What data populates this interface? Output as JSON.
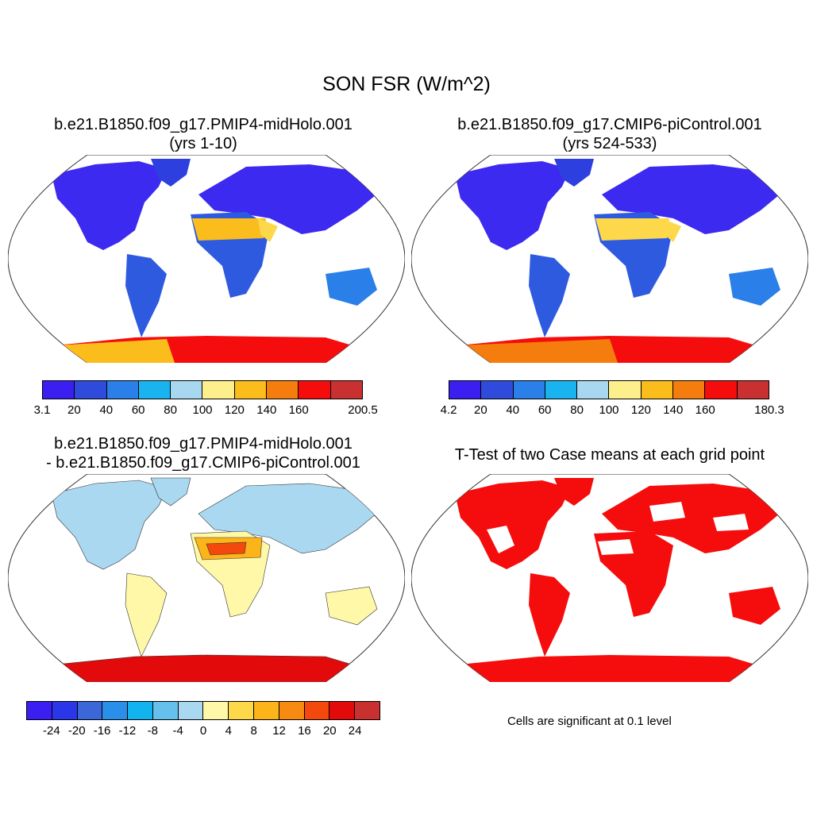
{
  "title": "SON FSR (W/m^2)",
  "panels": {
    "p1": {
      "title1": "b.e21.B1850.f09_g17.PMIP4-midHolo.001",
      "title2": "(yrs 1-10)"
    },
    "p2": {
      "title1": "b.e21.B1850.f09_g17.CMIP6-piControl.001",
      "title2": "(yrs 524-533)"
    },
    "p3": {
      "title1": "b.e21.B1850.f09_g17.PMIP4-midHolo.001",
      "title2": "- b.e21.B1850.f09_g17.CMIP6-piControl.001"
    },
    "p4": {
      "title1": "T-Test of two Case means at each grid point",
      "note": "Cells are significant at 0.1 level"
    }
  },
  "colorbars": {
    "cb1": {
      "colors": [
        "#3a1ff0",
        "#2e4bdc",
        "#2a7fe8",
        "#19b4f0",
        "#a8d8f0",
        "#fdf08c",
        "#fbbd1c",
        "#f47d0e",
        "#f50d0d",
        "#c93030"
      ],
      "labels": [
        "3.1",
        "20",
        "40",
        "60",
        "80",
        "100",
        "120",
        "140",
        "160",
        "200.5"
      ]
    },
    "cb2": {
      "colors": [
        "#3a1ff0",
        "#2e4bdc",
        "#2a7fe8",
        "#19b4f0",
        "#a8d8f0",
        "#fdf08c",
        "#fbbd1c",
        "#f47d0e",
        "#f50d0d",
        "#c93030"
      ],
      "labels": [
        "4.2",
        "20",
        "40",
        "60",
        "80",
        "100",
        "120",
        "140",
        "160",
        "180.3"
      ]
    },
    "cb3": {
      "colors": [
        "#3a1ff0",
        "#2b36e8",
        "#3c67d8",
        "#2a8fe8",
        "#12b4f0",
        "#66c0ec",
        "#aad8f0",
        "#fef8a8",
        "#fdd84a",
        "#fbb41a",
        "#f78a10",
        "#f4490c",
        "#e20a0a",
        "#c93030"
      ],
      "labels": [
        "-24",
        "-20",
        "-16",
        "-12",
        "-8",
        "-4",
        "0",
        "4",
        "8",
        "12",
        "16",
        "20",
        "24"
      ]
    }
  }
}
